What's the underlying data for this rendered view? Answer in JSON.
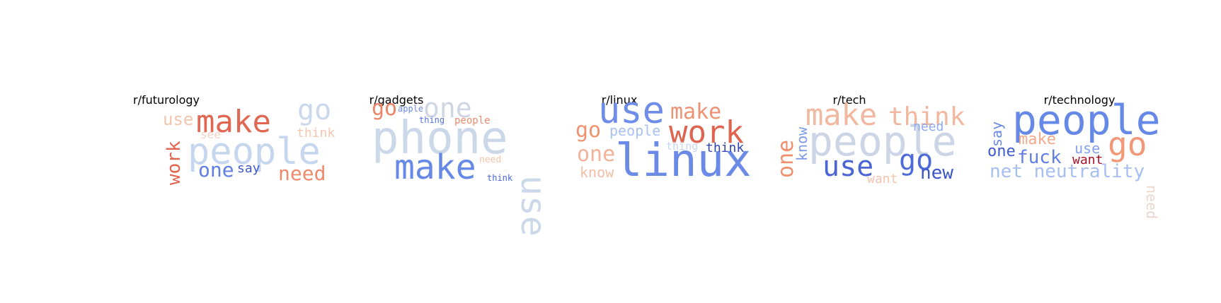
{
  "chart_data": [
    {
      "type": "wordcloud",
      "title": "r/futurology",
      "words": [
        {
          "text": "people",
          "color": "#c6d6ee"
        },
        {
          "text": "make",
          "color": "#e06852"
        },
        {
          "text": "go",
          "color": "#cad8ec"
        },
        {
          "text": "use",
          "color": "#f3c3ad"
        },
        {
          "text": "work",
          "color": "#e06450"
        },
        {
          "text": "need",
          "color": "#ee8a6c"
        },
        {
          "text": "one",
          "color": "#5f7ee4"
        },
        {
          "text": "think",
          "color": "#f5c6b0"
        },
        {
          "text": "see",
          "color": "#f1d1c4"
        },
        {
          "text": "say",
          "color": "#3e58cf"
        }
      ]
    },
    {
      "type": "wordcloud",
      "title": "r/gadgets",
      "words": [
        {
          "text": "phone",
          "color": "#cbd8ea"
        },
        {
          "text": "use",
          "color": "#cbd8ea"
        },
        {
          "text": "make",
          "color": "#6688e6"
        },
        {
          "text": "one",
          "color": "#cfd6e3"
        },
        {
          "text": "go",
          "color": "#ec8466"
        },
        {
          "text": "apple",
          "color": "#6b8ae4"
        },
        {
          "text": "thing",
          "color": "#5472dc"
        },
        {
          "text": "people",
          "color": "#ee8a6c"
        },
        {
          "text": "need",
          "color": "#f6c4aa"
        },
        {
          "text": "think",
          "color": "#4a66d6"
        }
      ]
    },
    {
      "type": "wordcloud",
      "title": "r/linux",
      "words": [
        {
          "text": "linux",
          "color": "#6b8ae6"
        },
        {
          "text": "use",
          "color": "#6e8de8"
        },
        {
          "text": "work",
          "color": "#df6450"
        },
        {
          "text": "make",
          "color": "#ef9272"
        },
        {
          "text": "go",
          "color": "#ef9272"
        },
        {
          "text": "people",
          "color": "#a9c1f2"
        },
        {
          "text": "one",
          "color": "#f3b299"
        },
        {
          "text": "know",
          "color": "#f3bda6"
        },
        {
          "text": "thing",
          "color": "#c6d5ee"
        },
        {
          "text": "think",
          "color": "#2e44bb"
        }
      ]
    },
    {
      "type": "wordcloud",
      "title": "r/tech",
      "words": [
        {
          "text": "people",
          "color": "#cbd5e6"
        },
        {
          "text": "make",
          "color": "#f1b79f"
        },
        {
          "text": "think",
          "color": "#f1b79f"
        },
        {
          "text": "use",
          "color": "#4a64d4"
        },
        {
          "text": "go",
          "color": "#4e6ad8"
        },
        {
          "text": "one",
          "color": "#ee8e6c"
        },
        {
          "text": "know",
          "color": "#7c9be8"
        },
        {
          "text": "need",
          "color": "#8fabee"
        },
        {
          "text": "new",
          "color": "#3a54cc"
        },
        {
          "text": "want",
          "color": "#f5c4ae"
        }
      ]
    },
    {
      "type": "wordcloud",
      "title": "r/technology",
      "words": [
        {
          "text": "people",
          "color": "#6688e6"
        },
        {
          "text": "go",
          "color": "#f09878"
        },
        {
          "text": "net neutrality",
          "color": "#a6bff2"
        },
        {
          "text": "make",
          "color": "#f3a98c"
        },
        {
          "text": "fuck",
          "color": "#5f80e2"
        },
        {
          "text": "use",
          "color": "#83a1ec"
        },
        {
          "text": "one",
          "color": "#3f5ad0"
        },
        {
          "text": "say",
          "color": "#6a8ae2"
        },
        {
          "text": "want",
          "color": "#b00f26"
        },
        {
          "text": "need",
          "color": "#ead6cd"
        }
      ]
    }
  ]
}
